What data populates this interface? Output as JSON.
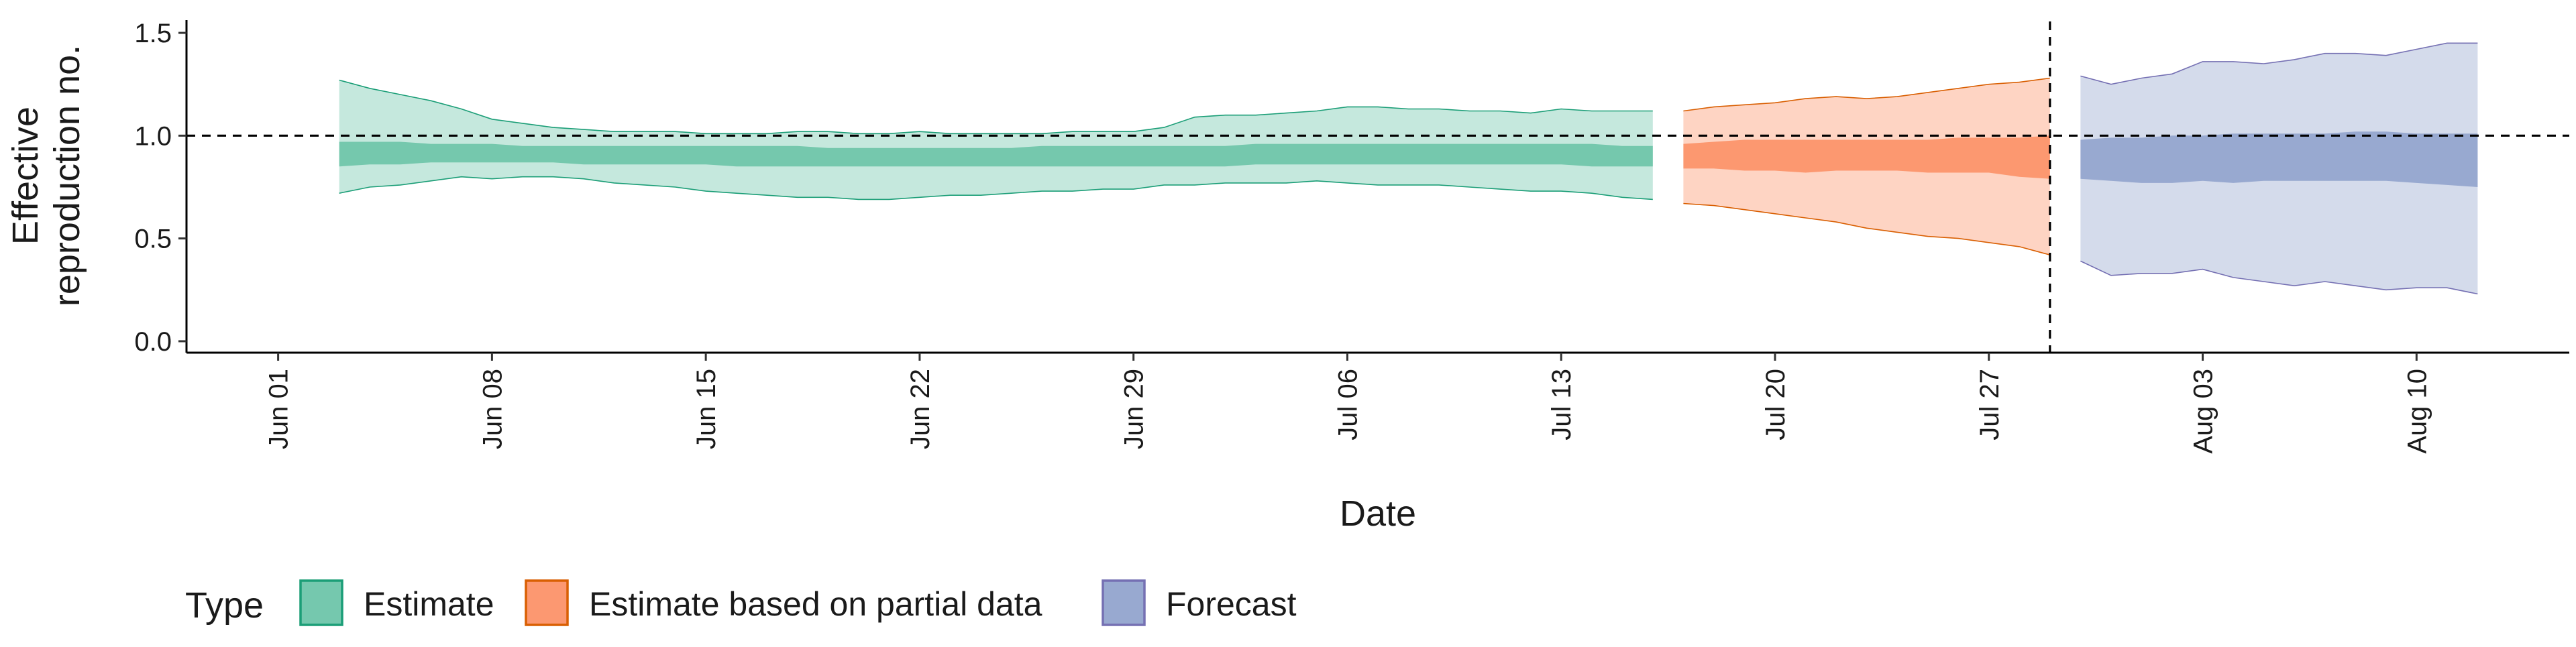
{
  "chart_data": {
    "type": "area",
    "xlabel": "Date",
    "ylabel_lines": [
      "Effective",
      "reproduction no."
    ],
    "ylim": [
      0,
      1.5
    ],
    "yticks": [
      0.0,
      0.5,
      1.0,
      1.5
    ],
    "ytick_labels": [
      "0.0",
      "0.5",
      "1.0",
      "1.5"
    ],
    "x_range": [
      "2020-05-29",
      "2020-08-15"
    ],
    "xtick_dates": [
      "2020-06-01",
      "2020-06-08",
      "2020-06-15",
      "2020-06-22",
      "2020-06-29",
      "2020-07-06",
      "2020-07-13",
      "2020-07-20",
      "2020-07-27",
      "2020-08-03",
      "2020-08-10"
    ],
    "xtick_labels": [
      "Jun 01",
      "Jun 08",
      "Jun 15",
      "Jun 22",
      "Jun 29",
      "Jul 06",
      "Jul 13",
      "Jul 20",
      "Jul 27",
      "Aug 03",
      "Aug 10"
    ],
    "reference_line": {
      "y": 1.0,
      "style": "dashed"
    },
    "vertical_line": {
      "x": "2020-07-29",
      "style": "dashed"
    },
    "legend": {
      "title": "Type",
      "placement": "bottom-left",
      "entries": [
        "Estimate",
        "Estimate based on partial data",
        "Forecast"
      ]
    },
    "series": [
      {
        "name": "Estimate",
        "fill_color": "#66C2A5",
        "stroke_color": "#1B9E77",
        "dates": [
          "2020-06-03",
          "2020-06-04",
          "2020-06-05",
          "2020-06-06",
          "2020-06-07",
          "2020-06-08",
          "2020-06-09",
          "2020-06-10",
          "2020-06-11",
          "2020-06-12",
          "2020-06-13",
          "2020-06-14",
          "2020-06-15",
          "2020-06-16",
          "2020-06-17",
          "2020-06-18",
          "2020-06-19",
          "2020-06-20",
          "2020-06-21",
          "2020-06-22",
          "2020-06-23",
          "2020-06-24",
          "2020-06-25",
          "2020-06-26",
          "2020-06-27",
          "2020-06-28",
          "2020-06-29",
          "2020-06-30",
          "2020-07-01",
          "2020-07-02",
          "2020-07-03",
          "2020-07-04",
          "2020-07-05",
          "2020-07-06",
          "2020-07-07",
          "2020-07-08",
          "2020-07-09",
          "2020-07-10",
          "2020-07-11",
          "2020-07-12",
          "2020-07-13",
          "2020-07-14",
          "2020-07-15",
          "2020-07-16"
        ],
        "lower90": [
          0.72,
          0.75,
          0.76,
          0.78,
          0.8,
          0.79,
          0.8,
          0.8,
          0.79,
          0.77,
          0.76,
          0.75,
          0.73,
          0.72,
          0.71,
          0.7,
          0.7,
          0.69,
          0.69,
          0.7,
          0.71,
          0.71,
          0.72,
          0.73,
          0.73,
          0.74,
          0.74,
          0.76,
          0.76,
          0.77,
          0.77,
          0.77,
          0.78,
          0.77,
          0.76,
          0.76,
          0.76,
          0.75,
          0.74,
          0.73,
          0.73,
          0.72,
          0.7,
          0.69
        ],
        "upper90": [
          1.27,
          1.23,
          1.2,
          1.17,
          1.13,
          1.08,
          1.06,
          1.04,
          1.03,
          1.02,
          1.02,
          1.02,
          1.01,
          1.01,
          1.01,
          1.02,
          1.02,
          1.01,
          1.01,
          1.02,
          1.01,
          1.01,
          1.01,
          1.01,
          1.02,
          1.02,
          1.02,
          1.04,
          1.09,
          1.1,
          1.1,
          1.11,
          1.12,
          1.14,
          1.14,
          1.13,
          1.13,
          1.12,
          1.12,
          1.11,
          1.13,
          1.12,
          1.12,
          1.12
        ],
        "lower50": [
          0.85,
          0.86,
          0.86,
          0.87,
          0.87,
          0.87,
          0.87,
          0.87,
          0.86,
          0.86,
          0.86,
          0.86,
          0.86,
          0.85,
          0.85,
          0.85,
          0.85,
          0.85,
          0.85,
          0.85,
          0.85,
          0.85,
          0.85,
          0.85,
          0.85,
          0.85,
          0.85,
          0.85,
          0.85,
          0.85,
          0.86,
          0.86,
          0.86,
          0.86,
          0.86,
          0.86,
          0.86,
          0.86,
          0.86,
          0.86,
          0.86,
          0.85,
          0.85,
          0.85
        ],
        "upper50": [
          0.97,
          0.97,
          0.97,
          0.96,
          0.96,
          0.96,
          0.95,
          0.95,
          0.95,
          0.95,
          0.95,
          0.95,
          0.95,
          0.95,
          0.95,
          0.95,
          0.94,
          0.94,
          0.94,
          0.94,
          0.94,
          0.94,
          0.94,
          0.95,
          0.95,
          0.95,
          0.95,
          0.95,
          0.95,
          0.95,
          0.96,
          0.96,
          0.96,
          0.96,
          0.96,
          0.96,
          0.96,
          0.96,
          0.96,
          0.96,
          0.96,
          0.96,
          0.95,
          0.95
        ]
      },
      {
        "name": "Estimate based on partial data",
        "fill_color": "#FC8D62",
        "stroke_color": "#D95F02",
        "dates": [
          "2020-07-17",
          "2020-07-18",
          "2020-07-19",
          "2020-07-20",
          "2020-07-21",
          "2020-07-22",
          "2020-07-23",
          "2020-07-24",
          "2020-07-25",
          "2020-07-26",
          "2020-07-27",
          "2020-07-28",
          "2020-07-29"
        ],
        "lower90": [
          0.67,
          0.66,
          0.64,
          0.62,
          0.6,
          0.58,
          0.55,
          0.53,
          0.51,
          0.5,
          0.48,
          0.46,
          0.42
        ],
        "upper90": [
          1.12,
          1.14,
          1.15,
          1.16,
          1.18,
          1.19,
          1.18,
          1.19,
          1.21,
          1.23,
          1.25,
          1.26,
          1.28
        ],
        "lower50": [
          0.84,
          0.84,
          0.83,
          0.83,
          0.82,
          0.83,
          0.83,
          0.83,
          0.82,
          0.82,
          0.82,
          0.8,
          0.79
        ],
        "upper50": [
          0.96,
          0.97,
          0.98,
          0.98,
          0.98,
          0.98,
          0.98,
          0.98,
          0.98,
          0.99,
          0.99,
          0.99,
          1.0
        ]
      },
      {
        "name": "Forecast",
        "fill_color": "#8DA0CB",
        "stroke_color": "#7570B3",
        "dates": [
          "2020-07-30",
          "2020-07-31",
          "2020-08-01",
          "2020-08-02",
          "2020-08-03",
          "2020-08-04",
          "2020-08-05",
          "2020-08-06",
          "2020-08-07",
          "2020-08-08",
          "2020-08-09",
          "2020-08-10",
          "2020-08-11",
          "2020-08-12"
        ],
        "lower90": [
          0.39,
          0.32,
          0.33,
          0.33,
          0.35,
          0.31,
          0.29,
          0.27,
          0.29,
          0.27,
          0.25,
          0.26,
          0.26,
          0.23
        ],
        "upper90": [
          1.29,
          1.25,
          1.28,
          1.3,
          1.36,
          1.36,
          1.35,
          1.37,
          1.4,
          1.4,
          1.39,
          1.42,
          1.45,
          1.45
        ],
        "lower50": [
          0.79,
          0.78,
          0.77,
          0.77,
          0.78,
          0.77,
          0.78,
          0.78,
          0.78,
          0.78,
          0.78,
          0.77,
          0.76,
          0.75
        ],
        "upper50": [
          0.98,
          0.99,
          0.99,
          1.0,
          1.0,
          1.01,
          1.01,
          1.01,
          1.01,
          1.02,
          1.02,
          1.01,
          1.01,
          1.01
        ]
      }
    ]
  }
}
